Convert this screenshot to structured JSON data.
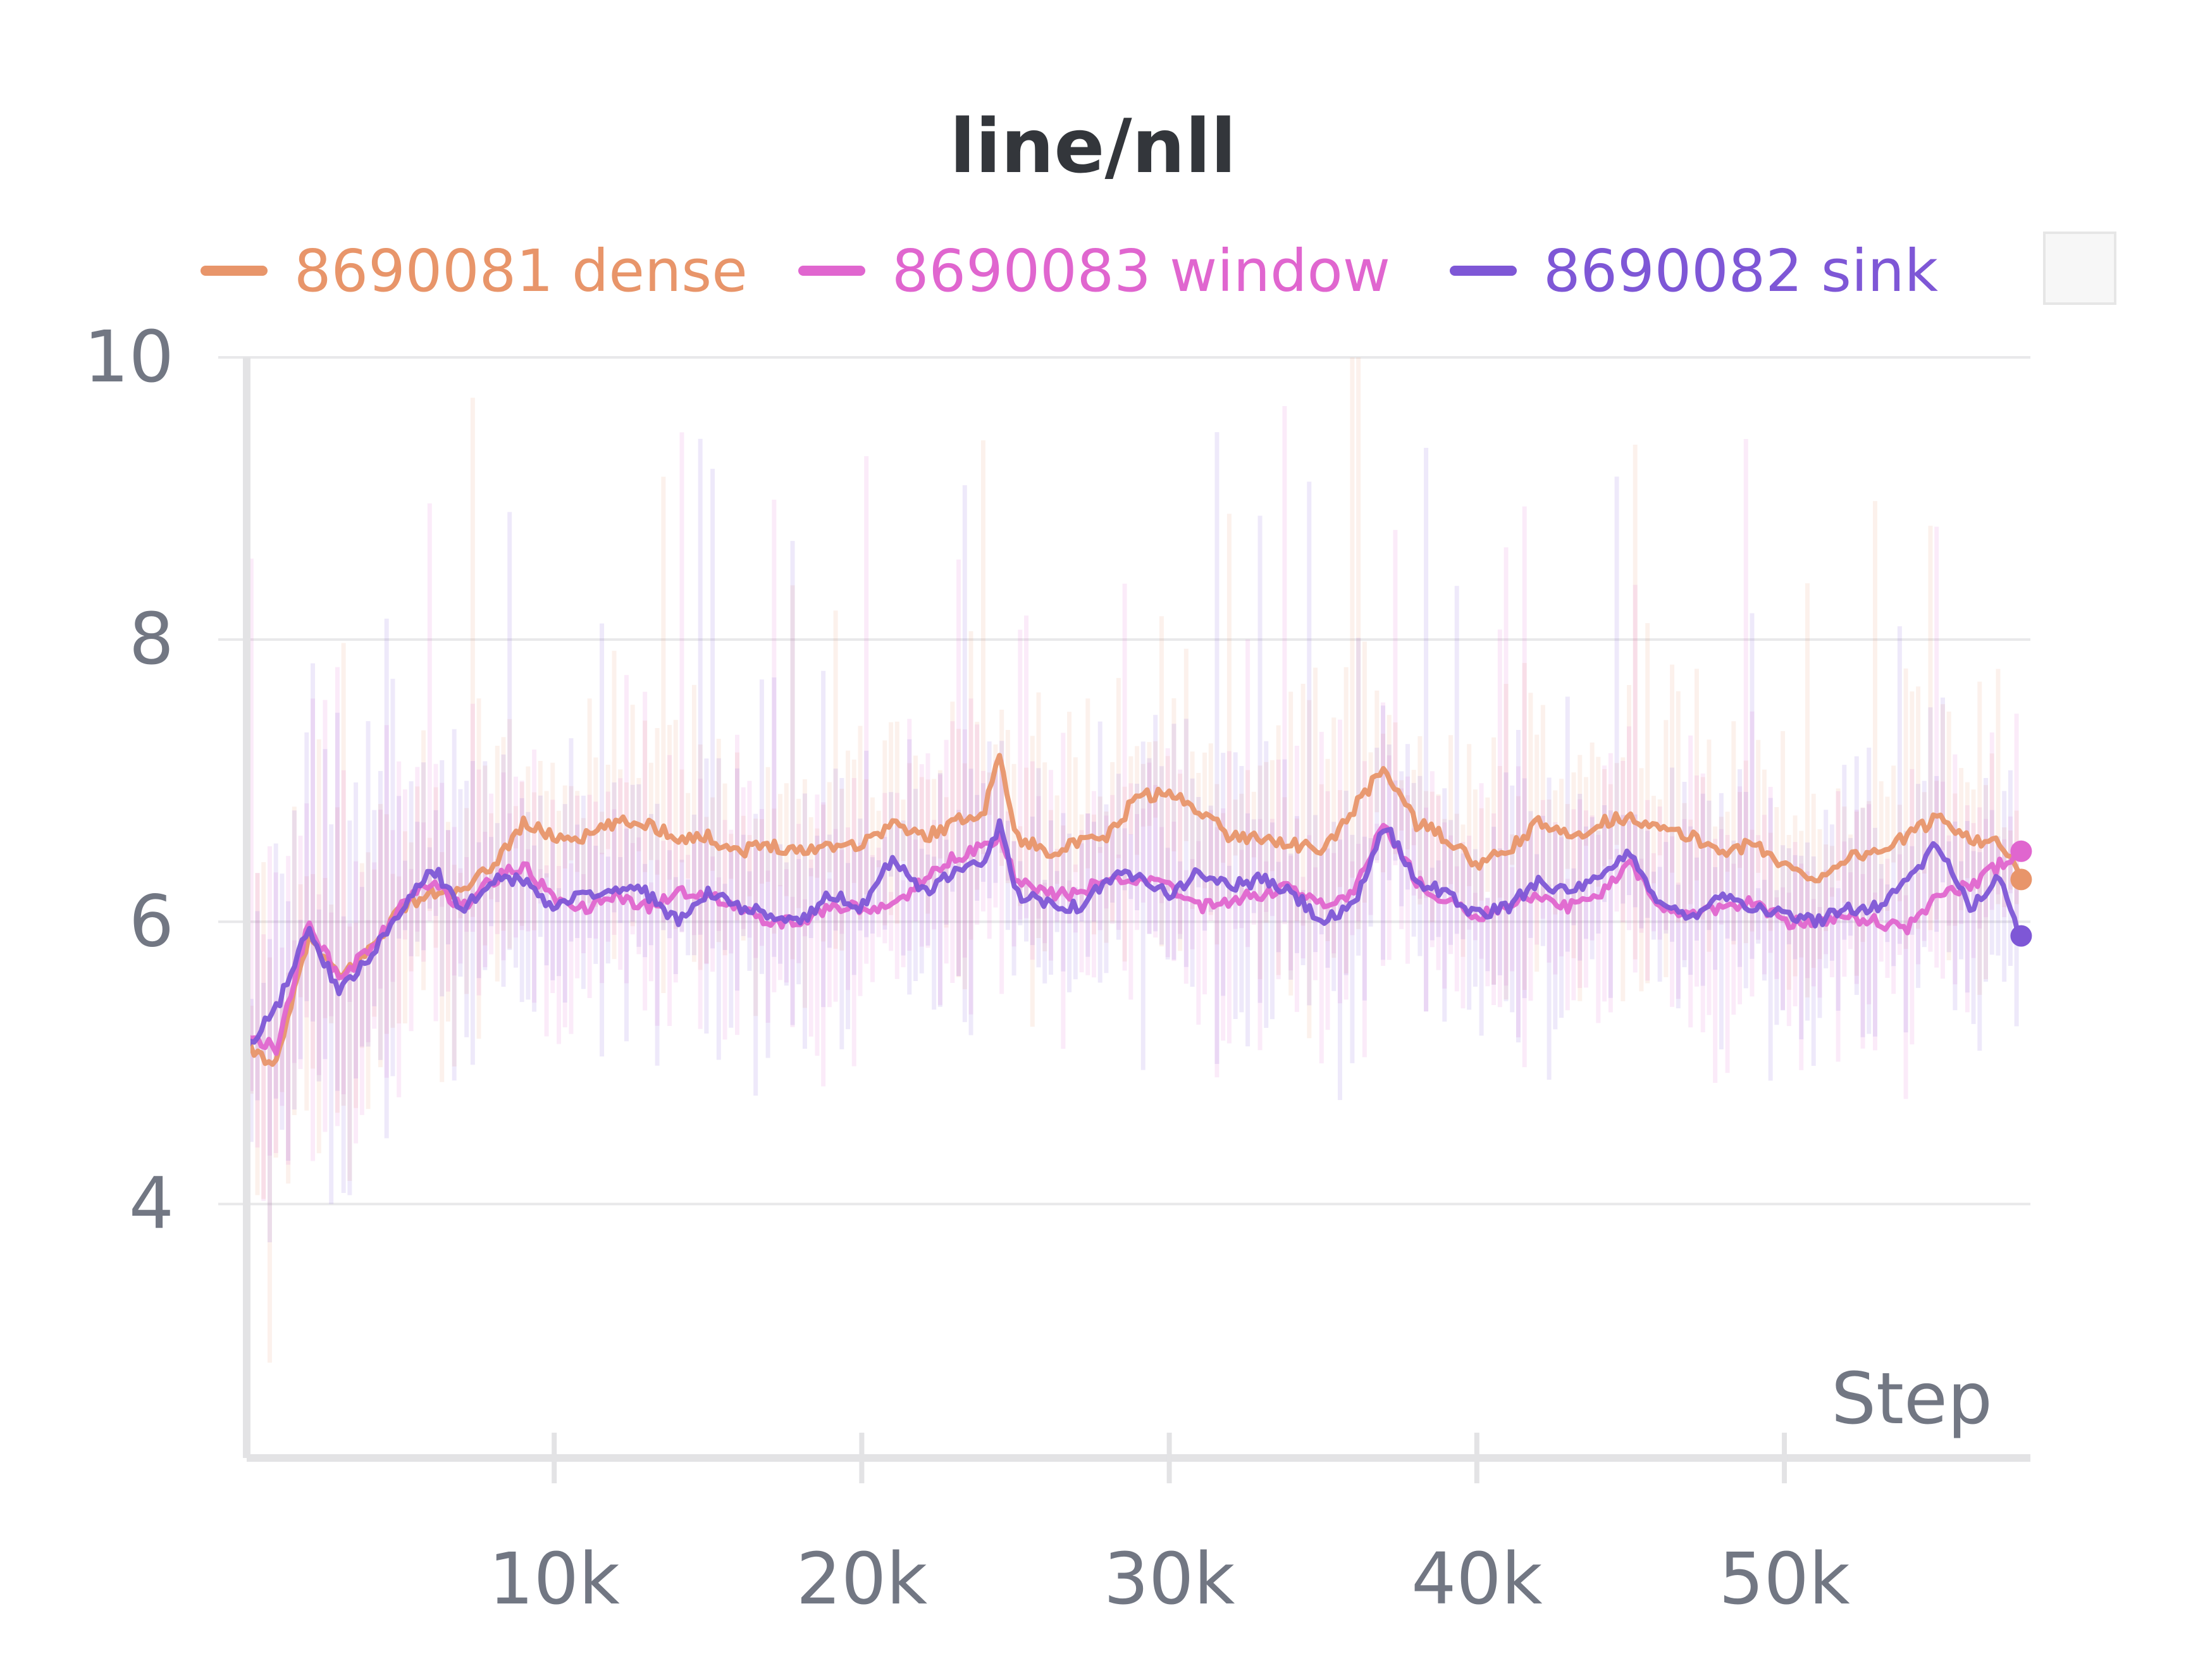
{
  "chart_data": {
    "type": "line",
    "title": "line/nll",
    "xlabel": "Step",
    "ylabel": "",
    "xlim": [
      0,
      58000
    ],
    "ylim": [
      2.2,
      10
    ],
    "x_ticks": [
      10000,
      20000,
      30000,
      40000,
      50000
    ],
    "x_tick_labels": [
      "10k",
      "20k",
      "30k",
      "40k",
      "50k"
    ],
    "y_ticks": [
      4,
      6,
      8,
      10
    ],
    "y_tick_labels": [
      "4",
      "6",
      "8",
      "10"
    ],
    "grid": true,
    "legend_position": "top",
    "x": [
      0,
      1000,
      2000,
      3000,
      4000,
      5000,
      6000,
      7000,
      8000,
      9000,
      10000,
      11000,
      12000,
      13000,
      14000,
      15000,
      16000,
      17000,
      18000,
      19000,
      20000,
      21000,
      22000,
      23000,
      24000,
      24500,
      25000,
      26000,
      27000,
      28000,
      29000,
      30000,
      31000,
      32000,
      33000,
      34000,
      35000,
      36000,
      37000,
      38000,
      39000,
      40000,
      41000,
      42000,
      43000,
      44000,
      45000,
      46000,
      47000,
      48000,
      49000,
      50000,
      51000,
      52000,
      53000,
      54000,
      55000,
      56000,
      57000,
      57700
    ],
    "series": [
      {
        "name": "8690081 dense",
        "color": "#e8956a",
        "values": [
          5.1,
          5.0,
          5.9,
          5.6,
          5.8,
          6.1,
          6.2,
          6.2,
          6.4,
          6.7,
          6.6,
          6.6,
          6.7,
          6.7,
          6.6,
          6.6,
          6.5,
          6.55,
          6.5,
          6.55,
          6.55,
          6.7,
          6.6,
          6.7,
          6.8,
          7.2,
          6.6,
          6.5,
          6.55,
          6.6,
          6.9,
          6.9,
          6.8,
          6.6,
          6.6,
          6.55,
          6.5,
          6.8,
          7.1,
          6.7,
          6.6,
          6.4,
          6.5,
          6.7,
          6.6,
          6.7,
          6.75,
          6.65,
          6.6,
          6.5,
          6.55,
          6.4,
          6.3,
          6.45,
          6.5,
          6.6,
          6.75,
          6.6,
          6.55,
          6.3
        ]
      },
      {
        "name": "8690083 window",
        "color": "#e066cf",
        "values": [
          5.2,
          5.1,
          6.0,
          5.6,
          5.8,
          6.1,
          6.3,
          6.1,
          6.3,
          6.4,
          6.15,
          6.1,
          6.2,
          6.1,
          6.2,
          6.2,
          6.1,
          6.0,
          6.0,
          6.1,
          6.1,
          6.1,
          6.3,
          6.45,
          6.55,
          6.6,
          6.3,
          6.2,
          6.2,
          6.3,
          6.3,
          6.25,
          6.1,
          6.15,
          6.2,
          6.25,
          6.1,
          6.2,
          6.7,
          6.3,
          6.15,
          6.05,
          6.1,
          6.2,
          6.1,
          6.2,
          6.4,
          6.1,
          6.05,
          6.1,
          6.15,
          6.0,
          6.0,
          6.05,
          6.0,
          5.95,
          6.2,
          6.25,
          6.4,
          6.5
        ]
      },
      {
        "name": "8690082 sink",
        "color": "#7e57d6",
        "values": [
          5.1,
          5.4,
          5.95,
          5.5,
          5.75,
          6.1,
          6.4,
          6.1,
          6.3,
          6.3,
          6.1,
          6.2,
          6.25,
          6.2,
          6.0,
          6.2,
          6.1,
          6.05,
          6.0,
          6.2,
          6.1,
          6.45,
          6.2,
          6.35,
          6.4,
          6.7,
          6.2,
          6.15,
          6.1,
          6.3,
          6.35,
          6.2,
          6.35,
          6.25,
          6.3,
          6.2,
          6.0,
          6.1,
          6.7,
          6.3,
          6.2,
          6.05,
          6.1,
          6.3,
          6.2,
          6.3,
          6.5,
          6.1,
          6.05,
          6.2,
          6.1,
          6.05,
          6.0,
          6.1,
          6.1,
          6.3,
          6.55,
          6.1,
          6.3,
          5.9
        ]
      }
    ]
  }
}
